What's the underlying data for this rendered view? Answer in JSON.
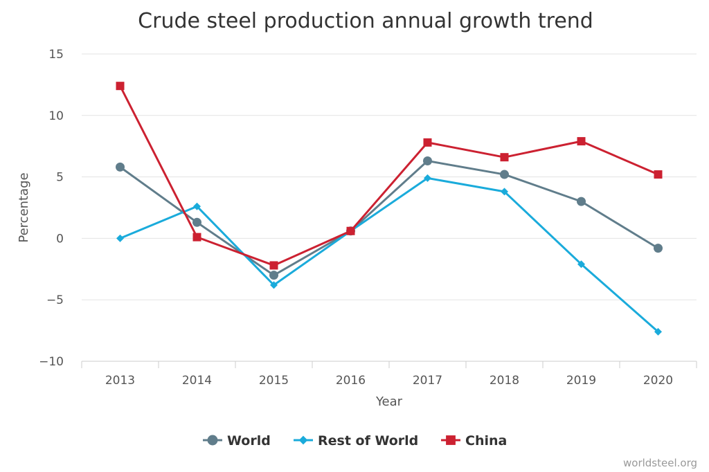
{
  "chart_data": {
    "type": "line",
    "title": "Crude steel production annual growth trend",
    "xlabel": "Year",
    "ylabel": "Percentage",
    "categories": [
      "2013",
      "2014",
      "2015",
      "2016",
      "2017",
      "2018",
      "2019",
      "2020"
    ],
    "ylim": [
      -10,
      15
    ],
    "yticks": [
      -10,
      -5,
      0,
      5,
      10,
      15
    ],
    "grid": true,
    "legend_position": "bottom-center",
    "series": [
      {
        "name": "World",
        "color": "#607d8b",
        "marker": "circle",
        "values": [
          5.8,
          1.3,
          -3.0,
          0.6,
          6.3,
          5.2,
          3.0,
          -0.8
        ]
      },
      {
        "name": "Rest of World",
        "color": "#1aabdb",
        "marker": "diamond",
        "values": [
          0.0,
          2.6,
          -3.8,
          0.6,
          4.9,
          3.8,
          -2.1,
          -7.6
        ]
      },
      {
        "name": "China",
        "color": "#cc2131",
        "marker": "square",
        "values": [
          12.4,
          0.1,
          -2.2,
          0.6,
          7.8,
          6.6,
          7.9,
          5.2
        ]
      }
    ]
  },
  "credit": "worldsteel.org"
}
